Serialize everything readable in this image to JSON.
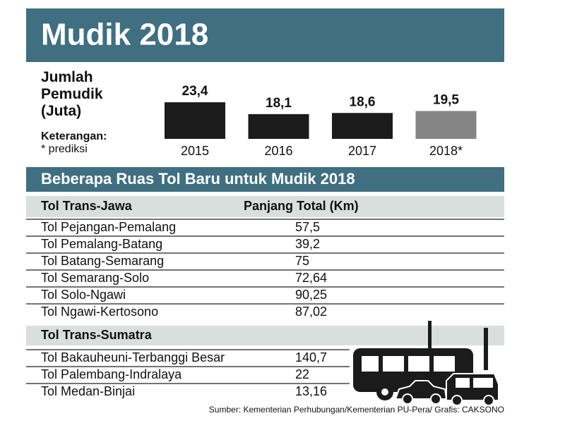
{
  "chart_data": {
    "type": "bar",
    "title": "Mudik 2018",
    "y_label": "Jumlah Pemudik (Juta)",
    "note_title": "Keterangan:",
    "note": "* prediksi",
    "categories": [
      "2015",
      "2016",
      "2017",
      "2018*"
    ],
    "values": [
      23.4,
      18.1,
      18.6,
      19.5
    ],
    "value_labels": [
      "23,4",
      "18,1",
      "18,6",
      "19,5"
    ],
    "colors": [
      "#1b1b1b",
      "#1b1b1b",
      "#1b1b1b",
      "#858585"
    ],
    "ylim": [
      7,
      25
    ]
  },
  "table": {
    "title": "Beberapa Ruas Tol Baru untuk Mudik 2018",
    "columns": [
      "Tol Trans-Jawa",
      "Panjang Total (Km)"
    ],
    "rows": [
      [
        "Tol Pejangan-Pemalang",
        "57,5"
      ],
      [
        "Tol Pemalang-Batang",
        "39,2"
      ],
      [
        "Tol Batang-Semarang",
        "75"
      ],
      [
        "Tol Semarang-Solo",
        "72,64"
      ],
      [
        "Tol Solo-Ngawi",
        "90,25"
      ],
      [
        "Tol Ngawi-Kertosono",
        "87,02"
      ]
    ],
    "section": "Tol Trans-Sumatra",
    "section_rows": [
      [
        "Tol Bakauheuni-Terbanggi Besar",
        "140,7"
      ],
      [
        "Tol Palembang-Indralaya",
        "22"
      ],
      [
        "Tol Medan-Binjai",
        "13,16"
      ]
    ]
  },
  "source": "Sumber: Kementerian Perhubungan/Kementerian PU-Pera/ Grafis: CAKSONO"
}
